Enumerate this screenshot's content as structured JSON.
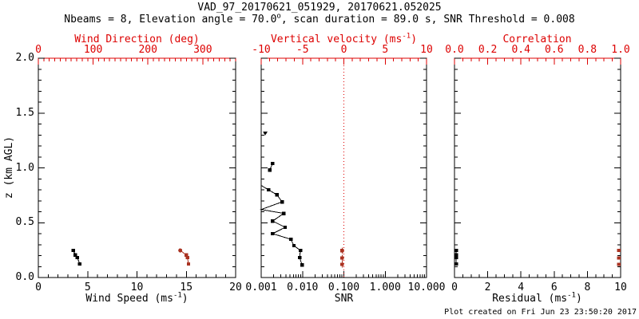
{
  "header": {
    "title": "VAD_97_20170621_051929, 20170621.052025",
    "subtitle": {
      "pre": "Nbeams = 8, Elevation angle = 70.0",
      "sup": "o",
      "post": ", scan duration = 89.0 s, SNR Threshold = 0.008"
    }
  },
  "footer": {
    "created_note": "Plot created on Fri Jun 23 23:50:20 2017"
  },
  "colors": {
    "axis_red": "#dd0000",
    "marker_red": "#aa3322",
    "black": "#000000",
    "background": "#ffffff"
  },
  "chart_data": {
    "type": "scatter",
    "title": "VAD_97_20170621_051929, 20170621.052025",
    "z_axis": {
      "title": "z (km AGL)",
      "range": [
        0,
        2
      ],
      "majors": [
        0,
        0.5,
        1,
        1.5,
        2
      ],
      "major_labels": [
        "0.0",
        "0.5",
        "1.0",
        "1.5",
        "2.0"
      ],
      "minor_step": 0.1
    },
    "panels": [
      {
        "name": "wind",
        "bottom_axis": {
          "title": {
            "pre": "Wind Speed (ms",
            "sup": "-1",
            "post": ")"
          },
          "scale": "linear",
          "range": [
            0,
            20
          ],
          "majors": [
            0,
            5,
            10,
            15,
            20
          ],
          "major_labels": [
            "0",
            "5",
            "10",
            "15",
            "20"
          ],
          "minor_step": 1,
          "color": "#000000"
        },
        "top_axis": {
          "title": {
            "pre": "Wind Direction (deg)",
            "sup": "",
            "post": ""
          },
          "scale": "linear",
          "range": [
            0,
            360
          ],
          "majors": [
            0,
            100,
            200,
            300
          ],
          "major_labels": [
            "0",
            "100",
            "200",
            "300"
          ],
          "minor_step": 10,
          "color": "#dd0000"
        },
        "series": [
          {
            "name": "wind-speed",
            "axis": "bottom",
            "color": "#000000",
            "line": true,
            "marker": "square",
            "segments": [
              [
                [
                  3.55,
                  0.247
                ],
                [
                  3.75,
                  0.205
                ],
                [
                  3.95,
                  0.182
                ],
                [
                  4.2,
                  0.124
                ]
              ]
            ]
          },
          {
            "name": "wind-direction",
            "axis": "top",
            "color": "#aa3322",
            "line": true,
            "marker": "square",
            "segments": [
              [
                [
                  259,
                  0.247,
                  "circle"
                ],
                [
                  270,
                  0.205
                ],
                [
                  272,
                  0.182
                ],
                [
                  274,
                  0.124
                ]
              ]
            ]
          }
        ]
      },
      {
        "name": "snr",
        "bottom_axis": {
          "title": {
            "pre": "SNR",
            "sup": "",
            "post": ""
          },
          "scale": "log",
          "range": [
            0.001,
            10
          ],
          "majors": [
            0.001,
            0.01,
            0.1,
            1,
            10
          ],
          "major_labels": [
            "0.001",
            "0.010",
            "0.100",
            "1.000",
            "10.000"
          ],
          "color": "#000000"
        },
        "top_axis": {
          "title": {
            "pre": "Vertical velocity (ms",
            "sup": "-1",
            "post": ")"
          },
          "scale": "linear",
          "range": [
            -10,
            10
          ],
          "majors": [
            -10,
            -5,
            0,
            5,
            10
          ],
          "major_labels": [
            "-10",
            "-5",
            "0",
            "5",
            "10"
          ],
          "minor_step": 1,
          "color": "#dd0000"
        },
        "refline": {
          "axis": "bottom",
          "value": 0.1,
          "color": "#dd0000",
          "style": "dotted"
        },
        "series": [
          {
            "name": "snr-profile",
            "axis": "bottom",
            "color": "#000000",
            "line": true,
            "marker": "square",
            "segments": [
              [
                [
                  0.00125,
                  1.316,
                  "triangle-down"
                ]
              ],
              [
                [
                  0.0019,
                  1.04
                ],
                [
                  0.0016,
                  0.98
                ]
              ],
              [
                [
                  0.001,
                  0.84,
                  "none"
                ],
                [
                  0.0015,
                  0.8
                ],
                [
                  0.0024,
                  0.755
                ],
                [
                  0.0032,
                  0.69
                ],
                [
                  0.001,
                  0.62,
                  "none"
                ],
                [
                  0.0035,
                  0.585
                ],
                [
                  0.0019,
                  0.515
                ],
                [
                  0.0038,
                  0.458
                ],
                [
                  0.0019,
                  0.4
                ],
                [
                  0.0052,
                  0.349
                ],
                [
                  0.0062,
                  0.291
                ],
                [
                  0.0089,
                  0.247
                ],
                [
                  0.0085,
                  0.182
                ],
                [
                  0.0097,
                  0.116
                ]
              ]
            ]
          },
          {
            "name": "vertical-velocity",
            "axis": "top",
            "color": "#aa3322",
            "line": false,
            "marker": "square",
            "zerr": 0.028,
            "segments": [
              [
                [
                  -0.2,
                  0.245
                ],
                [
                  -0.2,
                  0.178
                ],
                [
                  -0.2,
                  0.12
                ]
              ]
            ]
          }
        ]
      },
      {
        "name": "fit-quality",
        "bottom_axis": {
          "title": {
            "pre": "Residual (ms",
            "sup": "-1",
            "post": ")"
          },
          "scale": "linear",
          "range": [
            0,
            10
          ],
          "majors": [
            0,
            2,
            4,
            6,
            8,
            10
          ],
          "major_labels": [
            "0",
            "2",
            "4",
            "6",
            "8",
            "10"
          ],
          "minor_step": 0.5,
          "color": "#000000"
        },
        "top_axis": {
          "title": {
            "pre": "Correlation",
            "sup": "",
            "post": ""
          },
          "scale": "linear",
          "range": [
            0,
            1
          ],
          "majors": [
            0,
            0.2,
            0.4,
            0.6,
            0.8,
            1
          ],
          "major_labels": [
            "0.0",
            "0.2",
            "0.4",
            "0.6",
            "0.8",
            "1.0"
          ],
          "minor_step": 0.05,
          "color": "#dd0000"
        },
        "series": [
          {
            "name": "residual",
            "axis": "bottom",
            "color": "#000000",
            "line": true,
            "marker": "square",
            "segments": [
              [
                [
                  0.1,
                  0.247
                ],
                [
                  0.1,
                  0.205
                ],
                [
                  0.1,
                  0.182
                ],
                [
                  0.1,
                  0.124
                ]
              ]
            ]
          },
          {
            "name": "correlation",
            "axis": "top",
            "color": "#aa3322",
            "line": false,
            "marker": "square",
            "segments": [
              [
                [
                  0.99,
                  0.247
                ],
                [
                  0.99,
                  0.178
                ],
                [
                  0.99,
                  0.12
                ]
              ]
            ]
          }
        ]
      }
    ]
  }
}
